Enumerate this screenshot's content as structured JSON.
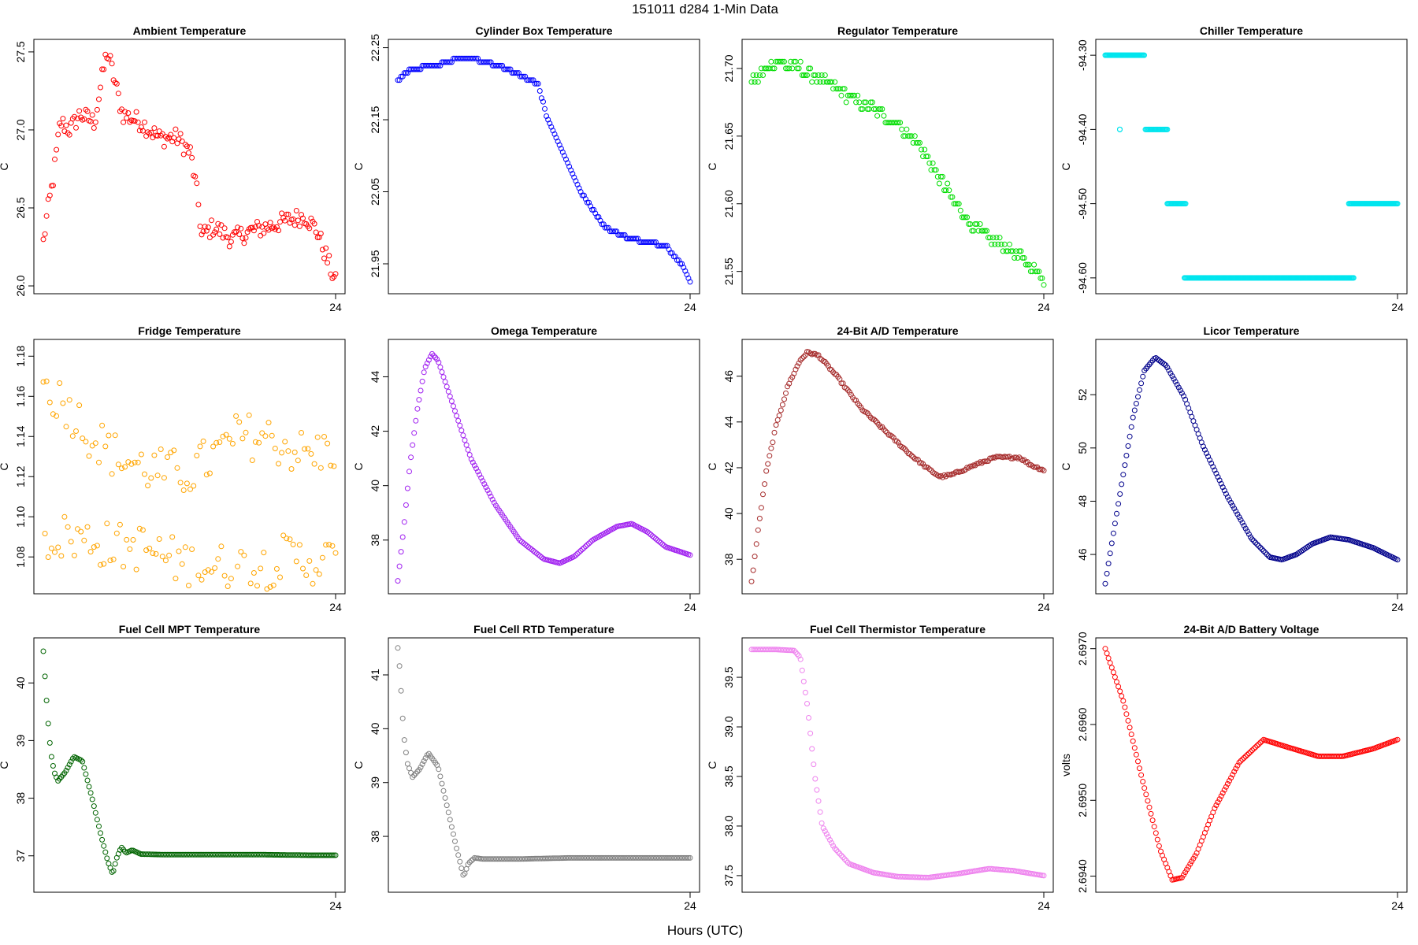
{
  "figure": {
    "title": "151011    d284    1-Min Data",
    "xlabel": "Hours (UTC)"
  },
  "chart_data": [
    {
      "type": "scatter",
      "title": "Ambient Temperature",
      "ylabel": "C",
      "xlim": [
        0,
        24
      ],
      "xticks": [
        24
      ],
      "ylim": [
        25.98,
        27.55
      ],
      "yticks": [
        26.0,
        26.5,
        27.0,
        27.5
      ],
      "ytick_labels": [
        "26.0",
        "26.5",
        "27.0",
        "27.5"
      ],
      "color": "#ff0000",
      "markers": "circle-open",
      "n_points": 180,
      "curve": [
        [
          0,
          26.28
        ],
        [
          0.3,
          26.45
        ],
        [
          0.8,
          26.68
        ],
        [
          1.4,
          27.05
        ],
        [
          2.2,
          27.0
        ],
        [
          3.0,
          27.1
        ],
        [
          4.2,
          27.05
        ],
        [
          5.2,
          27.5
        ],
        [
          5.5,
          27.43
        ],
        [
          6.5,
          27.1
        ],
        [
          8.0,
          27.05
        ],
        [
          9.5,
          26.95
        ],
        [
          11.0,
          26.95
        ],
        [
          12.1,
          26.85
        ],
        [
          12.7,
          26.55
        ],
        [
          13.0,
          26.32
        ],
        [
          14.0,
          26.38
        ],
        [
          15.5,
          26.3
        ],
        [
          17.0,
          26.35
        ],
        [
          18.5,
          26.38
        ],
        [
          20.0,
          26.42
        ],
        [
          21.5,
          26.45
        ],
        [
          22.5,
          26.35
        ],
        [
          23.4,
          26.15
        ],
        [
          24,
          26.02
        ]
      ],
      "noise": 0.06
    },
    {
      "type": "scatter",
      "title": "Cylinder Box Temperature",
      "ylabel": "C",
      "xlim": [
        0,
        24
      ],
      "xticks": [
        24
      ],
      "ylim": [
        21.915,
        22.255
      ],
      "yticks": [
        21.95,
        22.05,
        22.15,
        22.25
      ],
      "ytick_labels": [
        "21.95",
        "22.05",
        "22.15",
        "22.25"
      ],
      "color": "#0000ff",
      "markers": "circle-open",
      "n_points": 180,
      "curve": [
        [
          0,
          22.205
        ],
        [
          1.0,
          22.22
        ],
        [
          3.0,
          22.225
        ],
        [
          5.0,
          22.235
        ],
        [
          7.0,
          22.232
        ],
        [
          9.0,
          22.22
        ],
        [
          11.5,
          22.2
        ],
        [
          12.3,
          22.15
        ],
        [
          13.5,
          22.105
        ],
        [
          15.0,
          22.05
        ],
        [
          17.0,
          22.0
        ],
        [
          19.0,
          21.985
        ],
        [
          22.0,
          21.975
        ],
        [
          23.3,
          21.95
        ],
        [
          24,
          21.925
        ]
      ],
      "noise": 0.0,
      "quantum": 0.005
    },
    {
      "type": "scatter",
      "title": "Regulator Temperature",
      "ylabel": "C",
      "xlim": [
        0,
        24
      ],
      "xticks": [
        24
      ],
      "ylim": [
        21.537,
        21.718
      ],
      "yticks": [
        21.55,
        21.6,
        21.65,
        21.7
      ],
      "ytick_labels": [
        "21.55",
        "21.60",
        "21.65",
        "21.70"
      ],
      "color": "#00dd00",
      "markers": "circle-open",
      "n_points": 180,
      "curve": [
        [
          0,
          21.69
        ],
        [
          2.0,
          21.705
        ],
        [
          4.0,
          21.7
        ],
        [
          6.0,
          21.69
        ],
        [
          8.0,
          21.68
        ],
        [
          10.0,
          21.67
        ],
        [
          12.0,
          21.66
        ],
        [
          14.0,
          21.64
        ],
        [
          16.0,
          21.61
        ],
        [
          18.0,
          21.585
        ],
        [
          20.0,
          21.572
        ],
        [
          22.0,
          21.562
        ],
        [
          24,
          21.545
        ]
      ],
      "noise": 0.004,
      "quantum": 0.005
    },
    {
      "type": "scatter",
      "title": "Chiller Temperature",
      "ylabel": "C",
      "xlim": [
        0,
        24
      ],
      "xticks": [
        24
      ],
      "ylim": [
        -94.615,
        -94.285
      ],
      "yticks": [
        -94.6,
        -94.5,
        -94.4,
        -94.3
      ],
      "ytick_labels": [
        "-94.60",
        "-94.50",
        "-94.40",
        "-94.30"
      ],
      "color": "#00e5ee",
      "markers": "circle-open",
      "segments": [
        {
          "x0": 0.0,
          "x1": 3.2,
          "y": -94.3
        },
        {
          "x0": 1.2,
          "x1": 1.2,
          "y": -94.4
        },
        {
          "x0": 3.3,
          "x1": 5.1,
          "y": -94.4
        },
        {
          "x0": 5.1,
          "x1": 6.6,
          "y": -94.5
        },
        {
          "x0": 6.5,
          "x1": 20.4,
          "y": -94.6
        },
        {
          "x0": 20.0,
          "x1": 24.0,
          "y": -94.5
        }
      ],
      "n_points": 180
    },
    {
      "type": "scatter",
      "title": "Fridge Temperature",
      "ylabel": "C",
      "xlim": [
        0,
        24
      ],
      "xticks": [
        24
      ],
      "ylim": [
        1.064,
        1.186
      ],
      "yticks": [
        1.08,
        1.1,
        1.12,
        1.14,
        1.16,
        1.18
      ],
      "ytick_labels": [
        "1.08",
        "1.10",
        "1.12",
        "1.14",
        "1.16",
        "1.18"
      ],
      "color": "#ffa500",
      "markers": "circle-open",
      "n_points": 180,
      "upper_curve": [
        [
          0,
          1.165
        ],
        [
          2,
          1.155
        ],
        [
          4,
          1.14
        ],
        [
          6,
          1.13
        ],
        [
          8,
          1.125
        ],
        [
          10,
          1.122
        ],
        [
          12,
          1.122
        ],
        [
          14,
          1.13
        ],
        [
          16,
          1.14
        ],
        [
          18,
          1.14
        ],
        [
          20,
          1.135
        ],
        [
          22,
          1.13
        ],
        [
          24,
          1.135
        ]
      ],
      "lower_curve": [
        [
          0,
          1.09
        ],
        [
          2,
          1.09
        ],
        [
          4,
          1.088
        ],
        [
          6,
          1.085
        ],
        [
          8,
          1.085
        ],
        [
          10,
          1.08
        ],
        [
          12,
          1.076
        ],
        [
          14,
          1.075
        ],
        [
          16,
          1.075
        ],
        [
          18,
          1.075
        ],
        [
          20,
          1.08
        ],
        [
          22,
          1.078
        ],
        [
          24,
          1.078
        ]
      ],
      "noise": 0.012
    },
    {
      "type": "scatter",
      "title": "Omega Temperature",
      "ylabel": "C",
      "xlim": [
        0,
        24
      ],
      "xticks": [
        24
      ],
      "ylim": [
        36.2,
        45.2
      ],
      "yticks": [
        38,
        40,
        42,
        44
      ],
      "ytick_labels": [
        "38",
        "40",
        "42",
        "44"
      ],
      "color": "#a020f0",
      "markers": "circle-open",
      "n_points": 180,
      "curve": [
        [
          0,
          36.5
        ],
        [
          0.5,
          38.5
        ],
        [
          1.0,
          40.8
        ],
        [
          1.6,
          42.8
        ],
        [
          2.2,
          44.3
        ],
        [
          2.8,
          44.85
        ],
        [
          3.3,
          44.6
        ],
        [
          4.5,
          43.0
        ],
        [
          6.0,
          41.0
        ],
        [
          8.0,
          39.3
        ],
        [
          10.0,
          38.0
        ],
        [
          12.0,
          37.3
        ],
        [
          13.3,
          37.15
        ],
        [
          14.5,
          37.4
        ],
        [
          16.0,
          38.0
        ],
        [
          18.0,
          38.5
        ],
        [
          19.2,
          38.6
        ],
        [
          20.5,
          38.3
        ],
        [
          22.0,
          37.75
        ],
        [
          24,
          37.45
        ]
      ],
      "noise": 0.0
    },
    {
      "type": "scatter",
      "title": "24-Bit A/D Temperature",
      "ylabel": "C",
      "xlim": [
        0,
        24
      ],
      "xticks": [
        24
      ],
      "ylim": [
        36.7,
        47.4
      ],
      "yticks": [
        38,
        40,
        42,
        44,
        46
      ],
      "ytick_labels": [
        "38",
        "40",
        "42",
        "44",
        "46"
      ],
      "color": "#a52a2a",
      "markers": "circle-open",
      "n_points": 180,
      "curve": [
        [
          0,
          37.0
        ],
        [
          0.6,
          39.5
        ],
        [
          1.2,
          41.8
        ],
        [
          2.0,
          43.8
        ],
        [
          3.0,
          45.6
        ],
        [
          4.0,
          46.7
        ],
        [
          4.6,
          47.05
        ],
        [
          5.5,
          46.9
        ],
        [
          7.0,
          46.0
        ],
        [
          9.0,
          44.6
        ],
        [
          11.0,
          43.6
        ],
        [
          13.0,
          42.6
        ],
        [
          14.5,
          41.95
        ],
        [
          15.5,
          41.6
        ],
        [
          16.5,
          41.7
        ],
        [
          18.0,
          42.05
        ],
        [
          20.0,
          42.45
        ],
        [
          22.0,
          42.45
        ],
        [
          23.0,
          42.1
        ],
        [
          24,
          41.9
        ]
      ],
      "noise": 0.05
    },
    {
      "type": "scatter",
      "title": "Licor Temperature",
      "ylabel": "C",
      "xlim": [
        0,
        24
      ],
      "xticks": [
        24
      ],
      "ylim": [
        44.7,
        53.9
      ],
      "yticks": [
        46,
        48,
        50,
        52
      ],
      "ytick_labels": [
        "46",
        "48",
        "50",
        "52"
      ],
      "color": "#00008b",
      "markers": "circle-open",
      "n_points": 180,
      "curve": [
        [
          0,
          44.9
        ],
        [
          0.6,
          46.6
        ],
        [
          1.4,
          48.8
        ],
        [
          2.3,
          51.2
        ],
        [
          3.2,
          52.9
        ],
        [
          4.1,
          53.4
        ],
        [
          5.0,
          53.1
        ],
        [
          6.5,
          51.9
        ],
        [
          8.0,
          50.1
        ],
        [
          10.0,
          48.2
        ],
        [
          12.0,
          46.6
        ],
        [
          13.5,
          45.9
        ],
        [
          14.5,
          45.8
        ],
        [
          15.7,
          46.0
        ],
        [
          17.0,
          46.4
        ],
        [
          18.5,
          46.65
        ],
        [
          20.0,
          46.55
        ],
        [
          22.0,
          46.25
        ],
        [
          24,
          45.8
        ]
      ],
      "noise": 0.0
    },
    {
      "type": "scatter",
      "title": "Fuel Cell MPT Temperature",
      "ylabel": "C",
      "xlim": [
        0,
        24
      ],
      "xticks": [
        24
      ],
      "ylim": [
        36.45,
        40.7
      ],
      "yticks": [
        37,
        38,
        39,
        40
      ],
      "ytick_labels": [
        "37",
        "38",
        "39",
        "40"
      ],
      "color": "#006400",
      "markers": "circle-open",
      "n_points": 180,
      "curve": [
        [
          0,
          40.55
        ],
        [
          0.2,
          39.9
        ],
        [
          0.4,
          39.3
        ],
        [
          0.6,
          38.8
        ],
        [
          0.9,
          38.45
        ],
        [
          1.2,
          38.3
        ],
        [
          1.8,
          38.45
        ],
        [
          2.5,
          38.72
        ],
        [
          3.2,
          38.65
        ],
        [
          4.0,
          38.0
        ],
        [
          4.8,
          37.3
        ],
        [
          5.3,
          36.9
        ],
        [
          5.7,
          36.68
        ],
        [
          6.0,
          36.95
        ],
        [
          6.4,
          37.15
        ],
        [
          6.8,
          37.05
        ],
        [
          7.3,
          37.1
        ],
        [
          8.0,
          37.03
        ],
        [
          10,
          37.02
        ],
        [
          14,
          37.02
        ],
        [
          18,
          37.02
        ],
        [
          22,
          37.01
        ],
        [
          24,
          37.01
        ]
      ],
      "noise": 0.0
    },
    {
      "type": "scatter",
      "title": "Fuel Cell RTD Temperature",
      "ylabel": "C",
      "xlim": [
        0,
        24
      ],
      "xticks": [
        24
      ],
      "ylim": [
        37.05,
        41.6
      ],
      "yticks": [
        38,
        39,
        40,
        41
      ],
      "ytick_labels": [
        "38",
        "39",
        "40",
        "41"
      ],
      "color": "#808080",
      "markers": "circle-open",
      "n_points": 180,
      "curve": [
        [
          0,
          41.5
        ],
        [
          0.2,
          41.0
        ],
        [
          0.35,
          40.35
        ],
        [
          0.55,
          39.75
        ],
        [
          0.8,
          39.35
        ],
        [
          1.2,
          39.1
        ],
        [
          1.8,
          39.25
        ],
        [
          2.5,
          39.55
        ],
        [
          3.3,
          39.3
        ],
        [
          4.0,
          38.6
        ],
        [
          4.8,
          37.8
        ],
        [
          5.4,
          37.25
        ],
        [
          5.8,
          37.5
        ],
        [
          6.3,
          37.6
        ],
        [
          7.0,
          37.58
        ],
        [
          10,
          37.58
        ],
        [
          14,
          37.6
        ],
        [
          18,
          37.6
        ],
        [
          22,
          37.6
        ],
        [
          24,
          37.6
        ]
      ],
      "noise": 0.0
    },
    {
      "type": "scatter",
      "title": "Fuel Cell Thermistor Temperature",
      "ylabel": "C",
      "xlim": [
        0,
        24
      ],
      "xticks": [
        24
      ],
      "ylim": [
        37.38,
        39.85
      ],
      "yticks": [
        37.5,
        38.0,
        38.5,
        39.0,
        39.5
      ],
      "ytick_labels": [
        "37.5",
        "38.0",
        "38.5",
        "39.0",
        "39.5"
      ],
      "color": "#ee82ee",
      "markers": "circle-open",
      "n_points": 180,
      "curve": [
        [
          0,
          39.78
        ],
        [
          2.0,
          39.78
        ],
        [
          3.5,
          39.77
        ],
        [
          4.0,
          39.7
        ],
        [
          4.6,
          39.2
        ],
        [
          5.2,
          38.5
        ],
        [
          5.8,
          38.0
        ],
        [
          6.8,
          37.78
        ],
        [
          8.0,
          37.62
        ],
        [
          10.0,
          37.53
        ],
        [
          12.0,
          37.49
        ],
        [
          14.5,
          37.48
        ],
        [
          17.0,
          37.52
        ],
        [
          19.5,
          37.57
        ],
        [
          21.5,
          37.55
        ],
        [
          23.0,
          37.52
        ],
        [
          24,
          37.5
        ]
      ],
      "noise": 0.0
    },
    {
      "type": "scatter",
      "title": "24-Bit A/D Battery Voltage",
      "ylabel": "volts",
      "xlim": [
        0,
        24
      ],
      "xticks": [
        24
      ],
      "ylim": [
        2.69385,
        2.69708
      ],
      "yticks": [
        2.694,
        2.695,
        2.696,
        2.697
      ],
      "ytick_labels": [
        "2.6940",
        "2.6950",
        "2.6960",
        "2.6970"
      ],
      "color": "#ff0000",
      "markers": "circle-open",
      "n_points": 180,
      "curve": [
        [
          0,
          2.697
        ],
        [
          1.5,
          2.6963
        ],
        [
          3.0,
          2.6953
        ],
        [
          4.5,
          2.69435
        ],
        [
          5.5,
          2.69395
        ],
        [
          6.3,
          2.69398
        ],
        [
          7.5,
          2.6943
        ],
        [
          9.0,
          2.6949
        ],
        [
          11.0,
          2.6955
        ],
        [
          13.0,
          2.6958
        ],
        [
          15.0,
          2.6957
        ],
        [
          17.5,
          2.69558
        ],
        [
          19.5,
          2.69558
        ],
        [
          22.0,
          2.69568
        ],
        [
          24,
          2.6958
        ]
      ],
      "noise": 0.0
    }
  ]
}
